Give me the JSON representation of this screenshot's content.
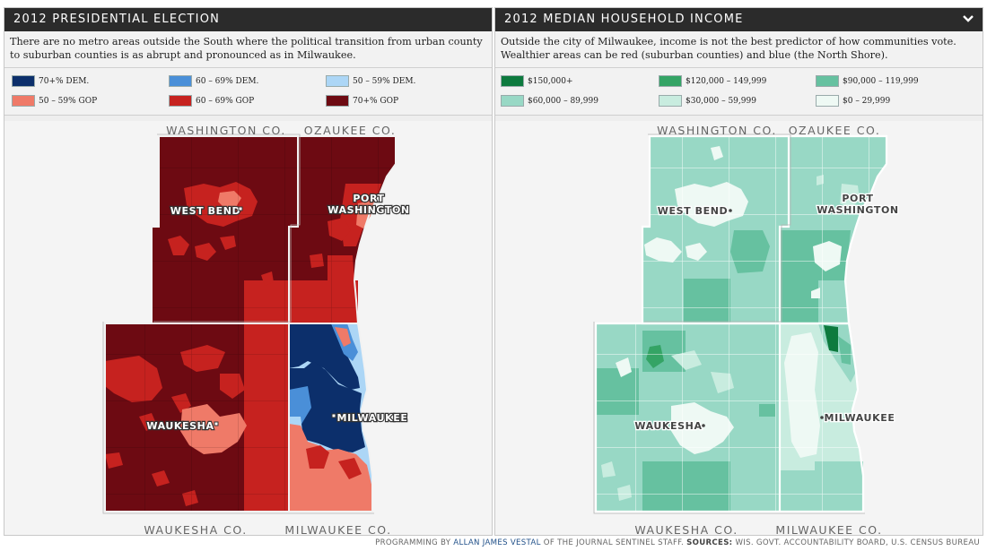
{
  "left": {
    "title": "2012 PRESIDENTIAL ELECTION",
    "description": "There are no metro areas outside the South where the political transition from urban county to suburban counties is as abrupt and pronounced as in Milwaukee.",
    "legend": [
      {
        "label": "70+% DEM.",
        "color": "#0c2f6b"
      },
      {
        "label": "60 – 69% DEM.",
        "color": "#4a8fd8"
      },
      {
        "label": "50 – 59% DEM.",
        "color": "#acd6f6"
      },
      {
        "label": "50 – 59% GOP",
        "color": "#ef7a68"
      },
      {
        "label": "60 – 69% GOP",
        "color": "#c6221f"
      },
      {
        "label": "70+% GOP",
        "color": "#6d0a12"
      }
    ],
    "labels": {
      "washington_co": "WASHINGTON CO.",
      "ozaukee_co": "OZAUKEE CO.",
      "waukesha_co": "WAUKESHA CO.",
      "milwaukee_co": "MILWAUKEE CO.",
      "west_bend": "WEST BEND",
      "port": "PORT",
      "washington_city": "WASHINGTON",
      "waukesha": "WAUKESHA",
      "milwaukee": "MILWAUKEE"
    }
  },
  "right": {
    "title": "2012 MEDIAN HOUSEHOLD INCOME",
    "description": "Outside the city of Milwaukee, income is not the best predictor of how communities vote. Wealthier areas can be red (suburban counties) and blue (the North Shore).",
    "legend": [
      {
        "label": "$150,000+",
        "color": "#0d7a3e"
      },
      {
        "label": "$120,000 – 149,999",
        "color": "#34a465"
      },
      {
        "label": "$90,000 – 119,999",
        "color": "#66c1a0"
      },
      {
        "label": "$60,000 – 89,999",
        "color": "#98d8c5"
      },
      {
        "label": "$30,000 – 59,999",
        "color": "#c8ecdf"
      },
      {
        "label": "$0 – 29,999",
        "color": "#eef9f4"
      }
    ],
    "labels": {
      "washington_co": "WASHINGTON CO.",
      "ozaukee_co": "OZAUKEE CO.",
      "waukesha_co": "WAUKESHA CO.",
      "milwaukee_co": "MILWAUKEE CO.",
      "west_bend": "WEST BEND",
      "port": "PORT",
      "washington_city": "WASHINGTON",
      "waukesha": "WAUKESHA",
      "milwaukee": "MILWAUKEE"
    }
  },
  "credit": {
    "prefix": "PROGRAMMING BY",
    "author": "ALLAN JAMES VESTAL",
    "middle": "OF THE JOURNAL SENTINEL STAFF.",
    "sources_label": "SOURCES:",
    "sources": "WIS. GOVT. ACCOUNTABILITY BOARD, U.S. CENSUS BUREAU"
  },
  "icons": {
    "collapse": "chevron-down-icon"
  }
}
